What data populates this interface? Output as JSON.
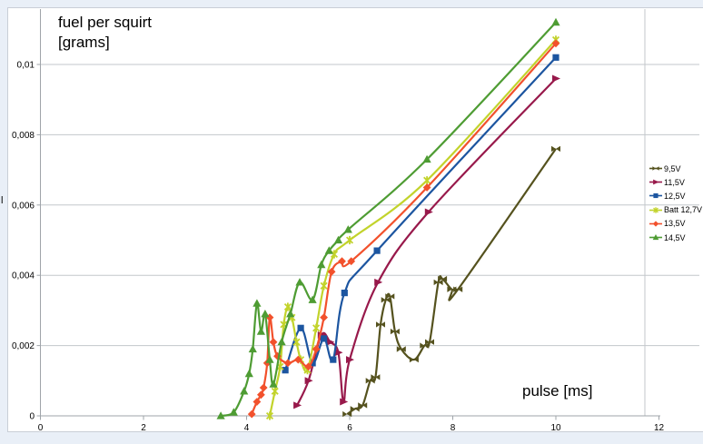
{
  "title": {
    "line1": "fuel per squirt",
    "line2": "[grams]"
  },
  "x_axis_title": "pulse [ms]",
  "stray_axis_char": "l",
  "panel": {
    "background": "#ffffff",
    "page_background": "#e9eff7",
    "border_color": "#c9ced6"
  },
  "axis_style": {
    "grid_color": "#c3c7cb",
    "axis_color": "#9fa4a9",
    "tick_label_color": "#000000"
  },
  "legend": {
    "position": "right",
    "items": [
      {
        "label": "9,5V",
        "color": "#55521e",
        "marker": "bowtie"
      },
      {
        "label": "11,5V",
        "color": "#98194b",
        "marker": "arrow"
      },
      {
        "label": "12,5V",
        "color": "#1c55a0",
        "marker": "square"
      },
      {
        "label": "Batt 12,7V",
        "color": "#c2d32b",
        "marker": "xstar"
      },
      {
        "label": "13,5V",
        "color": "#f2512c",
        "marker": "diamond"
      },
      {
        "label": "14,5V",
        "color": "#4e9c33",
        "marker": "triangle"
      }
    ]
  },
  "chart_data": {
    "type": "line",
    "title": "fuel per squirt [grams]",
    "xlabel": "pulse [ms]",
    "ylabel": "fuel per squirt [grams]",
    "xlim": [
      0,
      12
    ],
    "ylim": [
      0,
      0.0116
    ],
    "x_ticks": [
      0,
      2,
      4,
      6,
      8,
      10,
      12
    ],
    "x_tick_labels": [
      "0",
      "2",
      "4",
      "6",
      "8",
      "10",
      "12"
    ],
    "y_ticks": [
      0,
      0.002,
      0.004,
      0.006,
      0.008,
      0.01
    ],
    "y_tick_labels": [
      "0",
      "0,002",
      "0,004",
      "0,006",
      "0,008",
      "0,01"
    ],
    "grid": "horizontal",
    "legend_position": "right",
    "series": [
      {
        "name": "9,5V",
        "color": "#55521e",
        "marker": "bowtie",
        "points": [
          [
            5.95,
            5e-05
          ],
          [
            6.1,
            0.0002
          ],
          [
            6.25,
            0.0003
          ],
          [
            6.4,
            0.001
          ],
          [
            6.5,
            0.0011
          ],
          [
            6.6,
            0.0026
          ],
          [
            6.7,
            0.0033
          ],
          [
            6.78,
            0.0034
          ],
          [
            6.88,
            0.0024
          ],
          [
            7.0,
            0.0019
          ],
          [
            7.25,
            0.0016
          ],
          [
            7.45,
            0.002
          ],
          [
            7.55,
            0.0021
          ],
          [
            7.72,
            0.0038
          ],
          [
            7.8,
            0.0039
          ],
          [
            7.98,
            0.0036
          ],
          [
            8.1,
            0.0036
          ],
          [
            10,
            0.0076
          ]
        ]
      },
      {
        "name": "11,5V",
        "color": "#98194b",
        "marker": "arrow",
        "points": [
          [
            4.98,
            0.0003
          ],
          [
            5.2,
            0.001
          ],
          [
            5.45,
            0.0023
          ],
          [
            5.62,
            0.0021
          ],
          [
            5.78,
            0.0018
          ],
          [
            5.88,
            0.0004
          ],
          [
            6.0,
            0.0016
          ],
          [
            6.55,
            0.0038
          ],
          [
            7.53,
            0.0058
          ],
          [
            10,
            0.0096
          ]
        ]
      },
      {
        "name": "12,5V",
        "color": "#1c55a0",
        "marker": "square",
        "points": [
          [
            4.75,
            0.0013
          ],
          [
            5.05,
            0.0025
          ],
          [
            5.28,
            0.0015
          ],
          [
            5.5,
            0.0022
          ],
          [
            5.68,
            0.0016
          ],
          [
            5.9,
            0.0035
          ],
          [
            6.53,
            0.0047
          ],
          [
            10,
            0.0102
          ]
        ]
      },
      {
        "name": "Batt 12,7V",
        "color": "#c2d32b",
        "marker": "xstar",
        "points": [
          [
            4.45,
            0
          ],
          [
            4.55,
            0.0007
          ],
          [
            4.65,
            0.0014
          ],
          [
            4.72,
            0.0026
          ],
          [
            4.8,
            0.0031
          ],
          [
            4.88,
            0.0028
          ],
          [
            4.97,
            0.0021
          ],
          [
            5.05,
            0.0016
          ],
          [
            5.18,
            0.0013
          ],
          [
            5.35,
            0.0025
          ],
          [
            5.5,
            0.0037
          ],
          [
            5.7,
            0.0046
          ],
          [
            6.0,
            0.005
          ],
          [
            7.5,
            0.0067
          ],
          [
            10,
            0.0107
          ]
        ]
      },
      {
        "name": "13,5V",
        "color": "#f2512c",
        "marker": "diamond",
        "points": [
          [
            4.1,
            5e-05
          ],
          [
            4.2,
            0.0004
          ],
          [
            4.28,
            0.0006
          ],
          [
            4.33,
            0.0008
          ],
          [
            4.4,
            0.0015
          ],
          [
            4.45,
            0.0028
          ],
          [
            4.52,
            0.0021
          ],
          [
            4.6,
            0.0017
          ],
          [
            4.8,
            0.0015
          ],
          [
            5.0,
            0.0016
          ],
          [
            5.2,
            0.0014
          ],
          [
            5.35,
            0.0019
          ],
          [
            5.5,
            0.0028
          ],
          [
            5.65,
            0.0041
          ],
          [
            5.85,
            0.0044
          ],
          [
            6.03,
            0.0044
          ],
          [
            7.5,
            0.0065
          ],
          [
            10,
            0.0106
          ]
        ]
      },
      {
        "name": "14,5V",
        "color": "#4e9c33",
        "marker": "triangle",
        "points": [
          [
            3.5,
            0
          ],
          [
            3.75,
            0.0001
          ],
          [
            3.95,
            0.0007
          ],
          [
            4.05,
            0.0012
          ],
          [
            4.12,
            0.0019
          ],
          [
            4.2,
            0.0032
          ],
          [
            4.28,
            0.0024
          ],
          [
            4.36,
            0.0029
          ],
          [
            4.45,
            0.0016
          ],
          [
            4.52,
            0.0009
          ],
          [
            4.68,
            0.0021
          ],
          [
            4.85,
            0.0029
          ],
          [
            5.03,
            0.0038
          ],
          [
            5.28,
            0.0033
          ],
          [
            5.45,
            0.0043
          ],
          [
            5.6,
            0.0047
          ],
          [
            5.78,
            0.005
          ],
          [
            5.97,
            0.0053
          ],
          [
            7.5,
            0.0073
          ],
          [
            10,
            0.0112
          ]
        ]
      }
    ]
  }
}
